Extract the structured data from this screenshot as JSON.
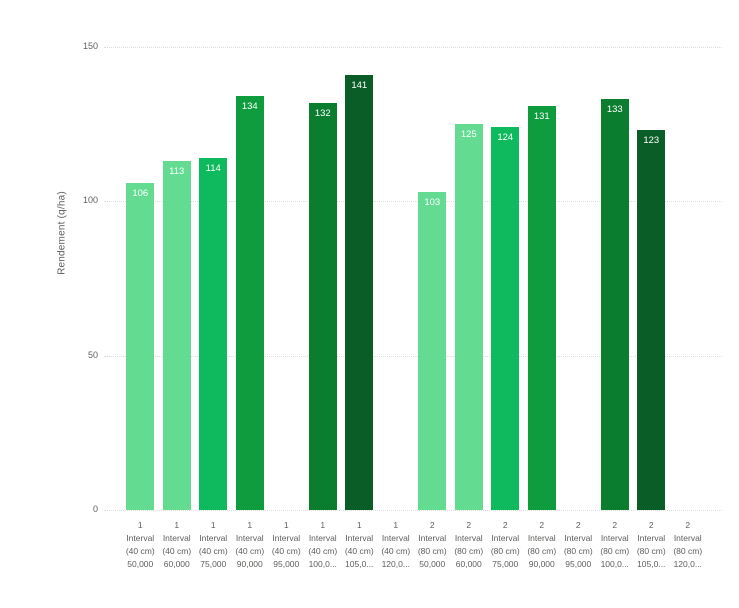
{
  "chart_data": {
    "type": "bar",
    "title": "",
    "xlabel": "",
    "ylabel": "Rendement (q/ha)",
    "ylim": [
      0,
      150
    ],
    "yticks": [
      0,
      50,
      100,
      150
    ],
    "grid": "horizontal-dotted",
    "legend": "none",
    "label_color": "#ffffff",
    "axis_text_color": "#605e5c",
    "categories": [
      {
        "group": "1",
        "level": "Interval",
        "spacing": "(40 cm)",
        "density": "50,000",
        "value": 106,
        "color": "#63dc92"
      },
      {
        "group": "1",
        "level": "Interval",
        "spacing": "(40 cm)",
        "density": "60,000",
        "value": 113,
        "color": "#63dc92"
      },
      {
        "group": "1",
        "level": "Interval",
        "spacing": "(40 cm)",
        "density": "75,000",
        "value": 114,
        "color": "#0fb95d"
      },
      {
        "group": "1",
        "level": "Interval",
        "spacing": "(40 cm)",
        "density": "90,000",
        "value": 134,
        "color": "#0e9c3f"
      },
      {
        "group": "1",
        "level": "Interval",
        "spacing": "(40 cm)",
        "density": "95,000",
        "value": null,
        "color": null
      },
      {
        "group": "1",
        "level": "Interval",
        "spacing": "(40 cm)",
        "density": "100,0...",
        "value": 132,
        "color": "#0a7d2e"
      },
      {
        "group": "1",
        "level": "Interval",
        "spacing": "(40 cm)",
        "density": "105,0...",
        "value": 141,
        "color": "#0b5d27"
      },
      {
        "group": "1",
        "level": "Interval",
        "spacing": "(40 cm)",
        "density": "120,0...",
        "value": null,
        "color": null
      },
      {
        "group": "2",
        "level": "Interval",
        "spacing": "(80 cm)",
        "density": "50,000",
        "value": 103,
        "color": "#63dc92"
      },
      {
        "group": "2",
        "level": "Interval",
        "spacing": "(80 cm)",
        "density": "60,000",
        "value": 125,
        "color": "#63dc92"
      },
      {
        "group": "2",
        "level": "Interval",
        "spacing": "(80 cm)",
        "density": "75,000",
        "value": 124,
        "color": "#0fb95d"
      },
      {
        "group": "2",
        "level": "Interval",
        "spacing": "(80 cm)",
        "density": "90,000",
        "value": 131,
        "color": "#0e9c3f"
      },
      {
        "group": "2",
        "level": "Interval",
        "spacing": "(80 cm)",
        "density": "95,000",
        "value": null,
        "color": null
      },
      {
        "group": "2",
        "level": "Interval",
        "spacing": "(80 cm)",
        "density": "100,0...",
        "value": 133,
        "color": "#0a7d2e"
      },
      {
        "group": "2",
        "level": "Interval",
        "spacing": "(80 cm)",
        "density": "105,0...",
        "value": 123,
        "color": "#0b5d27"
      },
      {
        "group": "2",
        "level": "Interval",
        "spacing": "(80 cm)",
        "density": "120,0...",
        "value": null,
        "color": null
      }
    ]
  }
}
